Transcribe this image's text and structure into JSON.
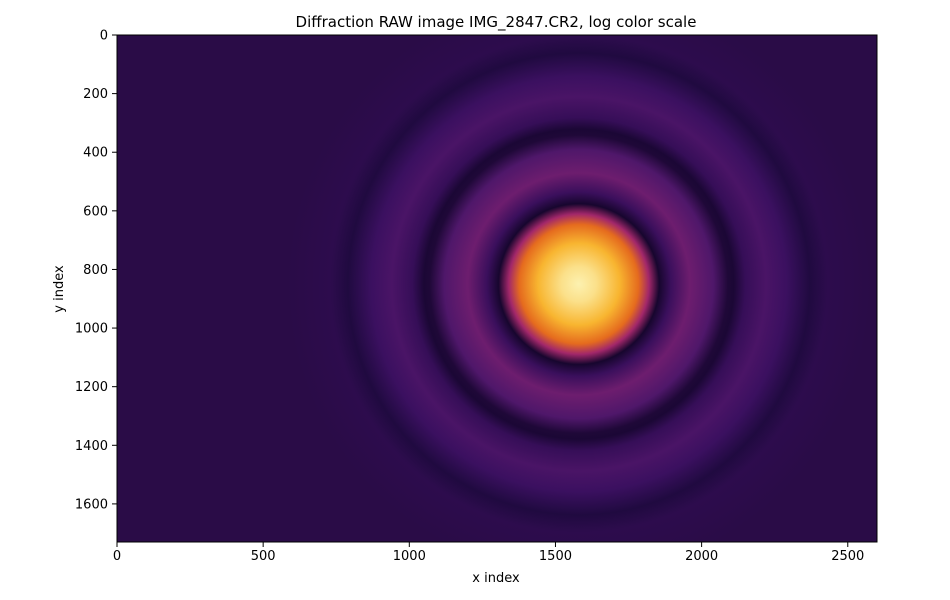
{
  "chart_data": {
    "type": "heatmap",
    "title": "Diffraction RAW image IMG_2847.CR2, log color scale",
    "xlabel": "x index",
    "ylabel": "y index",
    "xlim": [
      0,
      2600
    ],
    "ylim": [
      1730,
      0
    ],
    "y_axis_inverted": true,
    "xticks": [
      0,
      500,
      1000,
      1500,
      2000,
      2500
    ],
    "yticks": [
      0,
      200,
      400,
      600,
      800,
      1000,
      1200,
      1400,
      1600
    ],
    "colormap": "inferno",
    "color_scale": "log",
    "grid": false,
    "legend": false,
    "pattern": {
      "kind": "airy-ring diffraction",
      "center_x": 1580,
      "center_y": 850,
      "central_disk_radius": 240,
      "dark_ring_radii": [
        275,
        530,
        790
      ],
      "bright_ring_radii": [
        380,
        640
      ]
    }
  }
}
